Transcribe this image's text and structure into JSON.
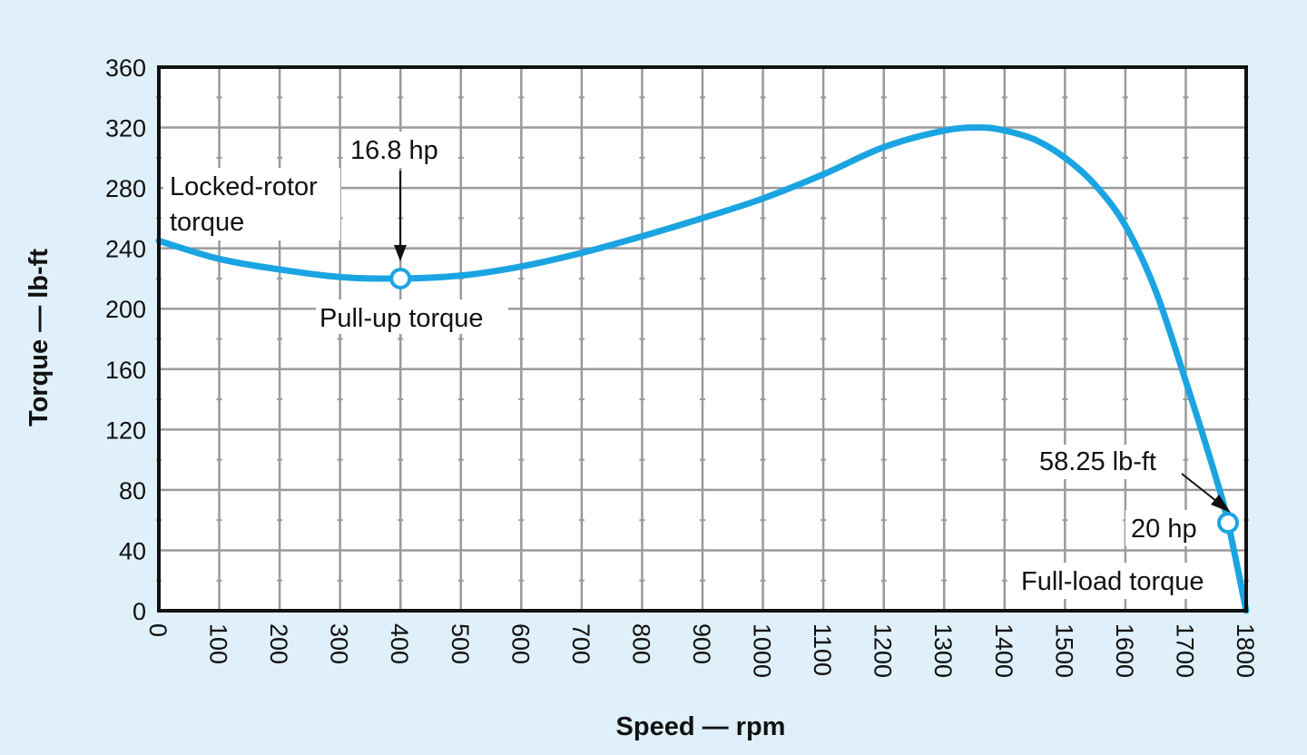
{
  "colors": {
    "background": "#e0f0fb",
    "curve": "#1ba4e2",
    "grid": "#9a9a9a",
    "frame": "#111111"
  },
  "chart_data": {
    "type": "line",
    "title": "",
    "xlabel": "Speed — rpm",
    "ylabel": "Torque — lb-ft",
    "xlim": [
      0,
      1800
    ],
    "ylim": [
      0,
      360
    ],
    "grid": true,
    "xticks": [
      "0",
      "100",
      "200",
      "300",
      "400",
      "500",
      "600",
      "700",
      "800",
      "900",
      "1000",
      "1100",
      "1200",
      "1300",
      "1400",
      "1500",
      "1600",
      "1700",
      "1800"
    ],
    "yticks": [
      "0",
      "40",
      "80",
      "120",
      "160",
      "200",
      "240",
      "280",
      "320",
      "360"
    ],
    "series": [
      {
        "name": "Torque",
        "x": [
          0,
          100,
          200,
          300,
          400,
          500,
          600,
          700,
          800,
          900,
          1000,
          1100,
          1200,
          1300,
          1360,
          1400,
          1450,
          1500,
          1550,
          1600,
          1650,
          1700,
          1750,
          1770,
          1800
        ],
        "y": [
          245,
          233,
          226,
          221,
          220,
          222,
          228,
          237,
          248,
          260,
          273,
          289,
          307,
          318,
          320,
          318,
          312,
          300,
          282,
          255,
          212,
          152,
          88,
          58.25,
          0
        ]
      }
    ],
    "markers": [
      {
        "x": 400,
        "y": 220
      },
      {
        "x": 1770,
        "y": 58.25
      }
    ],
    "annotations": {
      "locked_rotor_1": "Locked-rotor",
      "locked_rotor_2": "torque",
      "pullup_hp": "16.8 hp",
      "pullup_label": "Pull-up torque",
      "fullload_value": "58.25 lb-ft",
      "fullload_hp": "20 hp",
      "fullload_label": "Full-load torque"
    }
  }
}
